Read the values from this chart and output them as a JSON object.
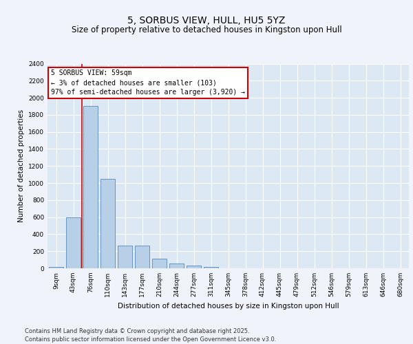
{
  "title": "5, SORBUS VIEW, HULL, HU5 5YZ",
  "subtitle": "Size of property relative to detached houses in Kingston upon Hull",
  "xlabel": "Distribution of detached houses by size in Kingston upon Hull",
  "ylabel": "Number of detached properties",
  "bins": [
    "9sqm",
    "43sqm",
    "76sqm",
    "110sqm",
    "143sqm",
    "177sqm",
    "210sqm",
    "244sqm",
    "277sqm",
    "311sqm",
    "345sqm",
    "378sqm",
    "412sqm",
    "445sqm",
    "479sqm",
    "512sqm",
    "546sqm",
    "579sqm",
    "613sqm",
    "646sqm",
    "680sqm"
  ],
  "values": [
    20,
    600,
    1900,
    1050,
    270,
    270,
    110,
    55,
    30,
    20,
    0,
    0,
    0,
    0,
    0,
    0,
    0,
    0,
    0,
    0,
    0
  ],
  "bar_color": "#b8cfe8",
  "bar_edge_color": "#5588bb",
  "plot_bg_color": "#dde8f5",
  "fig_bg_color": "#f0f4fa",
  "grid_color": "#ffffff",
  "red_line_color": "#cc0000",
  "annotation_box_color": "#ffffff",
  "annotation_edge_color": "#cc0000",
  "ylim": [
    0,
    2400
  ],
  "yticks": [
    0,
    200,
    400,
    600,
    800,
    1000,
    1200,
    1400,
    1600,
    1800,
    2000,
    2200,
    2400
  ],
  "annotation_title": "5 SORBUS VIEW: 59sqm",
  "annotation_line1": "← 3% of detached houses are smaller (103)",
  "annotation_line2": "97% of semi-detached houses are larger (3,920) →",
  "footer_line1": "Contains HM Land Registry data © Crown copyright and database right 2025.",
  "footer_line2": "Contains public sector information licensed under the Open Government Licence v3.0.",
  "title_fontsize": 10,
  "subtitle_fontsize": 8.5,
  "axis_label_fontsize": 7.5,
  "tick_fontsize": 6.5,
  "annotation_fontsize": 7,
  "footer_fontsize": 6
}
